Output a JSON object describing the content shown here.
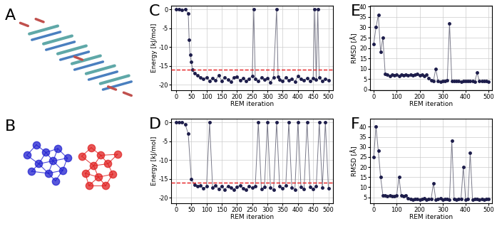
{
  "panel_labels": [
    "A",
    "B"
  ],
  "chart_data": [
    {
      "panel": "C",
      "type": "line",
      "x_label": "REM iteration",
      "y_label": "Energy [kJ/mol]",
      "x": [
        0,
        10,
        20,
        30,
        40,
        43,
        46,
        50,
        55,
        60,
        70,
        80,
        90,
        100,
        110,
        120,
        130,
        140,
        150,
        160,
        170,
        180,
        190,
        200,
        210,
        220,
        230,
        240,
        250,
        255,
        260,
        270,
        280,
        290,
        300,
        310,
        320,
        330,
        335,
        340,
        350,
        360,
        370,
        380,
        390,
        400,
        410,
        420,
        430,
        440,
        450,
        455,
        460,
        465,
        470,
        480,
        490,
        500
      ],
      "values": [
        0,
        0,
        -0.2,
        0,
        -1,
        -8,
        -12,
        -14,
        -16,
        -17,
        -17.5,
        -18,
        -18.5,
        -18,
        -19,
        -18.2,
        -18.8,
        -17.5,
        -19,
        -18,
        -18.6,
        -19.2,
        -18,
        -17.8,
        -18.9,
        -18.3,
        -19,
        -18.5,
        -17.6,
        0,
        -18.4,
        -19.1,
        -18,
        -18.7,
        -18.2,
        -19.3,
        -18,
        0,
        -17.9,
        -18.6,
        -19,
        -18.1,
        -18.8,
        -18.4,
        -19.2,
        -17.7,
        -18.5,
        -18.9,
        -18.2,
        -19,
        -18.3,
        0,
        -18.6,
        0,
        -18.1,
        -19,
        -18.4,
        -18.8
      ],
      "color": "#1c1c4a",
      "marker": "o",
      "line_style": "solid",
      "xlim": [
        -15,
        515
      ],
      "xticks": [
        0,
        50,
        100,
        150,
        200,
        250,
        300,
        350,
        400,
        450,
        500
      ],
      "ylim": [
        -21.5,
        1
      ],
      "yticks": [
        -20,
        -15,
        -10,
        -5,
        0
      ],
      "grid": true,
      "reference_line": {
        "value": -16,
        "color": "#e41a1c",
        "line_style": "dashed"
      }
    },
    {
      "panel": "D",
      "type": "line",
      "x_label": "REM iteration",
      "y_label": "Energy [kJ/mol]",
      "x": [
        0,
        10,
        20,
        30,
        40,
        50,
        60,
        70,
        80,
        90,
        100,
        110,
        120,
        130,
        140,
        150,
        160,
        170,
        180,
        190,
        200,
        210,
        220,
        230,
        240,
        250,
        260,
        270,
        280,
        290,
        300,
        310,
        320,
        330,
        340,
        350,
        360,
        370,
        380,
        390,
        400,
        410,
        420,
        430,
        440,
        450,
        460,
        470,
        480,
        490,
        500
      ],
      "values": [
        0,
        0,
        0,
        -0.5,
        -3,
        -15,
        -16.5,
        -17,
        -16.8,
        -17.5,
        -17,
        0,
        -17.3,
        -16.8,
        -17.6,
        -17,
        -17.8,
        -16.9,
        -17.4,
        -17.9,
        -17.1,
        -16.7,
        -17.5,
        -17.8,
        -17,
        -17.3,
        -16.9,
        0,
        -17.6,
        -17.2,
        0,
        -17.4,
        -17.9,
        0,
        -17,
        -17.5,
        -16.8,
        0,
        -17.3,
        -17.8,
        0,
        -17.1,
        -17.6,
        0,
        -17.2,
        -17.7,
        -16.9,
        0,
        -17.4,
        0,
        -17.5
      ],
      "color": "#1c1c4a",
      "marker": "o",
      "line_style": "solid",
      "xlim": [
        -15,
        515
      ],
      "xticks": [
        0,
        50,
        100,
        150,
        200,
        250,
        300,
        350,
        400,
        450,
        500
      ],
      "ylim": [
        -21.5,
        1
      ],
      "yticks": [
        -20,
        -15,
        -10,
        -5,
        0
      ],
      "grid": true,
      "reference_line": {
        "value": -16,
        "color": "#e41a1c",
        "line_style": "dashed"
      }
    },
    {
      "panel": "E",
      "type": "line",
      "x_label": "REM iteration",
      "y_label": "RMSD [Å]",
      "x": [
        0,
        10,
        20,
        30,
        40,
        50,
        60,
        70,
        80,
        90,
        100,
        110,
        120,
        130,
        140,
        150,
        160,
        170,
        180,
        190,
        200,
        210,
        220,
        230,
        240,
        250,
        260,
        270,
        280,
        290,
        300,
        310,
        320,
        330,
        340,
        350,
        360,
        370,
        380,
        390,
        400,
        410,
        420,
        430,
        440,
        450,
        460,
        470,
        480,
        490,
        500
      ],
      "values": [
        22,
        30,
        36,
        18,
        25,
        7.5,
        7,
        6.5,
        7.2,
        6.8,
        7,
        6.6,
        7.3,
        6.9,
        7.1,
        6.7,
        7.2,
        6.8,
        7,
        7.4,
        6.9,
        7.1,
        6.6,
        7,
        5.5,
        4.5,
        4,
        10,
        4.2,
        3.8,
        4.1,
        4,
        4.3,
        32,
        4,
        3.9,
        4.2,
        4,
        3.8,
        4.1,
        4,
        3.9,
        4.2,
        4,
        3.8,
        8,
        4,
        3.9,
        4.1,
        4,
        3.8
      ],
      "color": "#1c1c4a",
      "marker": "o",
      "line_style": "solid",
      "xlim": [
        -15,
        515
      ],
      "xticks": [
        0,
        100,
        200,
        300,
        400,
        500
      ],
      "ylim": [
        -0.5,
        40.5
      ],
      "yticks": [
        0,
        5,
        10,
        15,
        20,
        25,
        30,
        35,
        40
      ],
      "grid": true
    },
    {
      "panel": "F",
      "type": "line",
      "x_label": "REM iteration",
      "y_label": "RMSD [Å]",
      "x": [
        0,
        10,
        20,
        30,
        40,
        50,
        60,
        70,
        80,
        90,
        100,
        110,
        120,
        130,
        140,
        150,
        160,
        170,
        180,
        190,
        200,
        210,
        220,
        230,
        240,
        250,
        260,
        270,
        280,
        290,
        300,
        310,
        320,
        330,
        340,
        350,
        360,
        370,
        380,
        390,
        400,
        410,
        420,
        430,
        440,
        450,
        460,
        470,
        480,
        490,
        500
      ],
      "values": [
        25,
        40,
        28,
        15,
        6,
        5.8,
        5.5,
        6,
        5.7,
        5.5,
        6,
        15,
        5.8,
        5.6,
        6,
        4.5,
        4.2,
        4,
        4.3,
        4.1,
        4,
        4.2,
        4.5,
        4,
        4.1,
        4.3,
        12,
        4,
        4.2,
        4.4,
        4,
        4.1,
        4.3,
        4,
        33,
        4.2,
        4,
        4.1,
        4.3,
        20,
        4,
        4.2,
        27,
        4,
        4.1,
        4.3,
        4,
        4.2,
        4,
        4.1,
        4.3
      ],
      "color": "#1c1c4a",
      "marker": "o",
      "line_style": "solid",
      "xlim": [
        -15,
        515
      ],
      "xticks": [
        0,
        100,
        200,
        300,
        400,
        500
      ],
      "ylim": [
        2,
        44
      ],
      "yticks": [
        5,
        10,
        15,
        20,
        25,
        30,
        35,
        40
      ],
      "grid": true
    }
  ]
}
